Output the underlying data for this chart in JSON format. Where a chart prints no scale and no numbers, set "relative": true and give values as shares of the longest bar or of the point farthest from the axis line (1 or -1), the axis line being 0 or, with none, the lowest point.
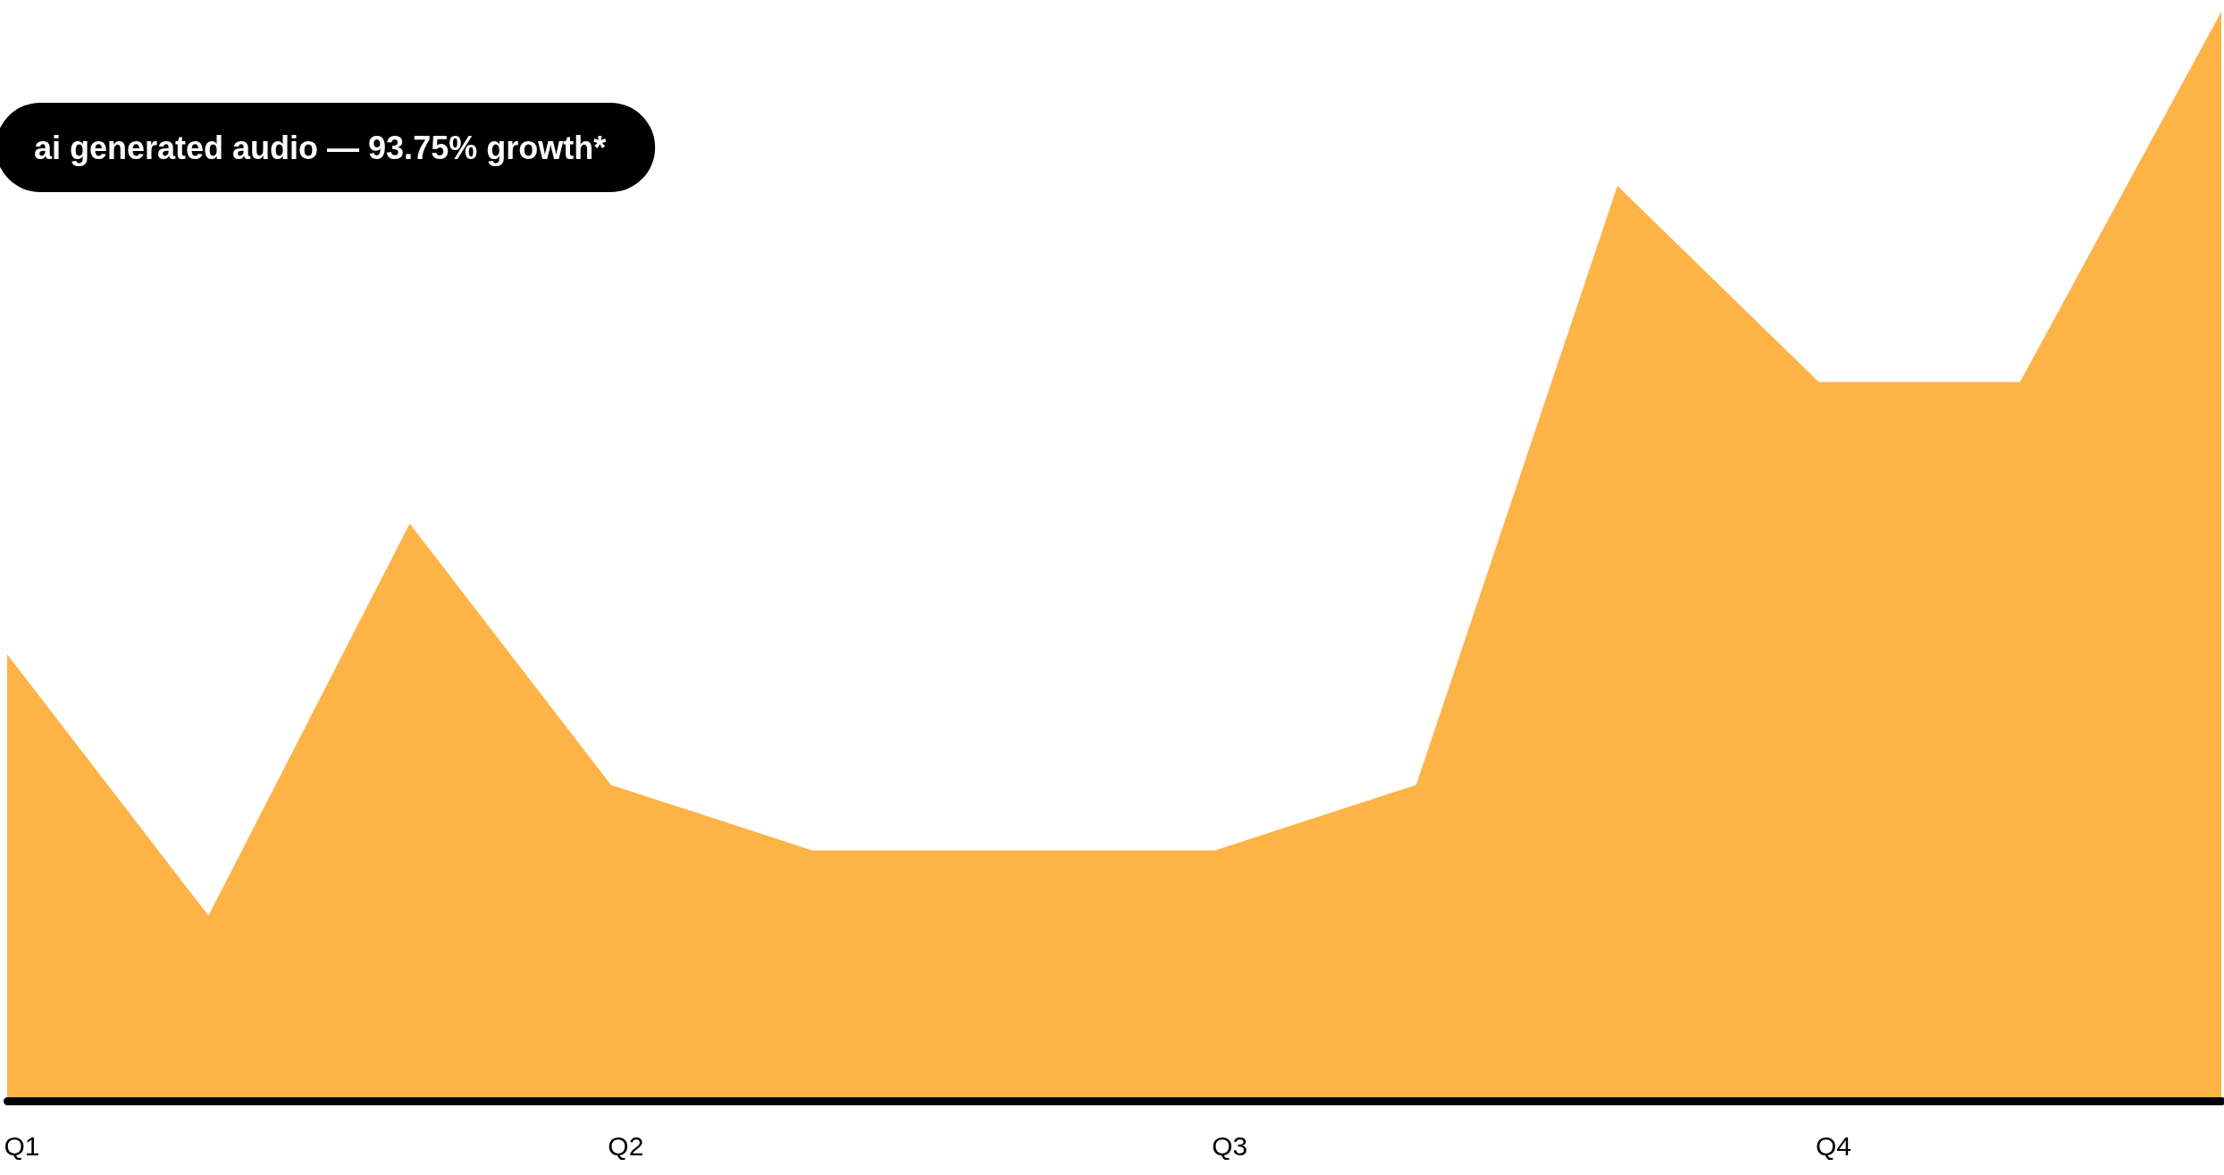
{
  "chart_data": {
    "type": "area",
    "relative": true,
    "categories": [
      "Q1",
      null,
      null,
      "Q2",
      null,
      null,
      "Q3",
      null,
      null,
      "Q4",
      null,
      null
    ],
    "series": [
      {
        "color": "#feb347",
        "values": [
          0.41,
          0.17,
          0.53,
          0.29,
          0.23,
          0.23,
          0.23,
          0.29,
          0.84,
          0.66,
          0.66,
          1.0
        ]
      }
    ],
    "annotations": [
      "ai generated audio — 93.75% growth*"
    ]
  }
}
